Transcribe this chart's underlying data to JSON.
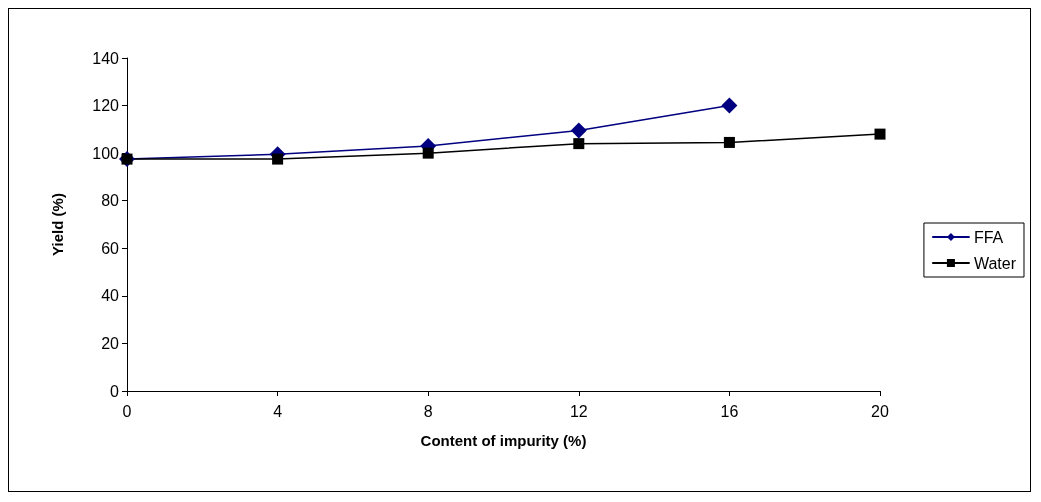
{
  "chart_data": {
    "type": "line",
    "xlabel": "Content of impurity (%)",
    "ylabel": "Yield (%)",
    "xlim": [
      0,
      20
    ],
    "xticks": [
      0,
      4,
      8,
      12,
      16,
      20
    ],
    "ylim": [
      0,
      140
    ],
    "yticks": [
      0,
      20,
      40,
      60,
      80,
      100,
      120,
      140
    ],
    "grid": false,
    "legend": "right",
    "line_style": "solid",
    "series": [
      {
        "name": "FFA",
        "color": "#000080",
        "marker": "diamond",
        "x": [
          0,
          4,
          8,
          12,
          16
        ],
        "values": [
          97.5,
          99.5,
          103,
          109.5,
          120
        ]
      },
      {
        "name": "Water",
        "color": "#000000",
        "marker": "square",
        "x": [
          0,
          4,
          8,
          12,
          16,
          20
        ],
        "values": [
          97.5,
          97.5,
          100,
          104,
          104.5,
          108
        ]
      }
    ]
  }
}
